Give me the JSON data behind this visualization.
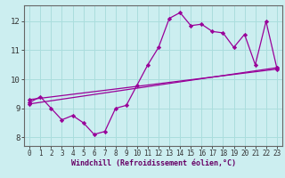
{
  "background_color": "#cceef0",
  "grid_color": "#aadddd",
  "line_color": "#990099",
  "marker": "D",
  "markersize": 2.2,
  "linewidth": 0.9,
  "xlabel": "Windchill (Refroidissement éolien,°C)",
  "xlim": [
    -0.5,
    23.5
  ],
  "ylim": [
    7.7,
    12.55
  ],
  "xticks": [
    0,
    1,
    2,
    3,
    4,
    5,
    6,
    7,
    8,
    9,
    10,
    11,
    12,
    13,
    14,
    15,
    16,
    17,
    18,
    19,
    20,
    21,
    22,
    23
  ],
  "yticks": [
    8,
    9,
    10,
    11,
    12
  ],
  "line1_x": [
    0,
    1,
    2,
    3,
    4,
    5,
    6,
    7,
    8,
    9,
    10,
    11,
    12,
    13,
    14,
    15,
    16,
    17,
    18,
    19,
    20,
    21,
    22,
    23
  ],
  "line1_y": [
    9.2,
    9.4,
    9.0,
    8.6,
    8.75,
    8.5,
    8.1,
    8.2,
    9.0,
    9.1,
    9.8,
    10.5,
    11.1,
    12.1,
    12.3,
    11.85,
    11.9,
    11.65,
    11.6,
    11.1,
    11.55,
    10.5,
    12.0,
    10.4
  ],
  "line2_x": [
    0,
    23
  ],
  "line2_y": [
    9.15,
    10.4
  ],
  "line3_x": [
    0,
    23
  ],
  "line3_y": [
    9.3,
    10.35
  ],
  "spine_color": "#666666",
  "tick_color": "#333333",
  "xlabel_color": "#660066",
  "xlabel_fontsize": 6.0,
  "tick_fontsize": 5.5,
  "ytick_fontsize": 6.5
}
